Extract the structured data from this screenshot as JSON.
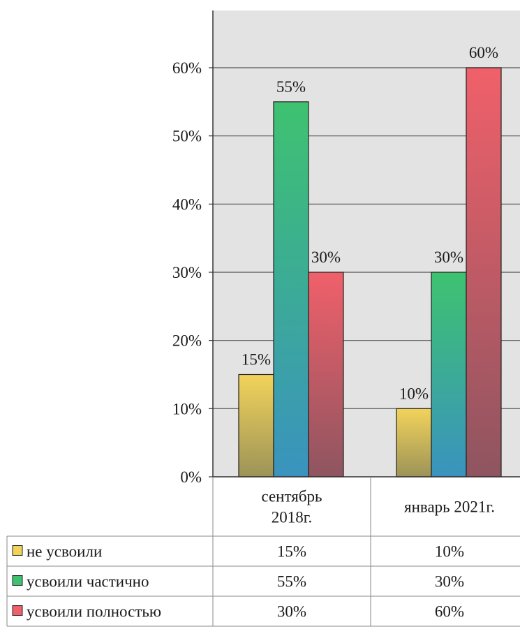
{
  "chart_data": {
    "type": "bar",
    "categories": [
      "сентябрь 2018г.",
      "январь 2021г."
    ],
    "category_lines": [
      [
        "сентябрь",
        "2018г."
      ],
      [
        "январь 2021г."
      ]
    ],
    "series": [
      {
        "name": "не усвоили",
        "values": [
          15,
          10
        ],
        "value_labels": [
          "15%",
          "10%"
        ],
        "color_top": "#f2d35a",
        "color_bottom": "#9c9358"
      },
      {
        "name": "усвоили частично",
        "values": [
          55,
          30
        ],
        "value_labels": [
          "55%",
          "30%"
        ],
        "color_top": "#3ec270",
        "color_bottom": "#3a93be"
      },
      {
        "name": "усвоили полностью",
        "values": [
          30,
          60
        ],
        "value_labels": [
          "30%",
          "60%"
        ],
        "color_top": "#f0606a",
        "color_bottom": "#8e5560"
      }
    ],
    "ylim": [
      0,
      60
    ],
    "yticks": [
      0,
      10,
      20,
      30,
      40,
      50,
      60
    ],
    "ytick_labels": [
      "0%",
      "10%",
      "20%",
      "30%",
      "40%",
      "50%",
      "60%"
    ],
    "grid": true,
    "legend": "data-table-below",
    "plot_background": "#e3e3e3"
  }
}
